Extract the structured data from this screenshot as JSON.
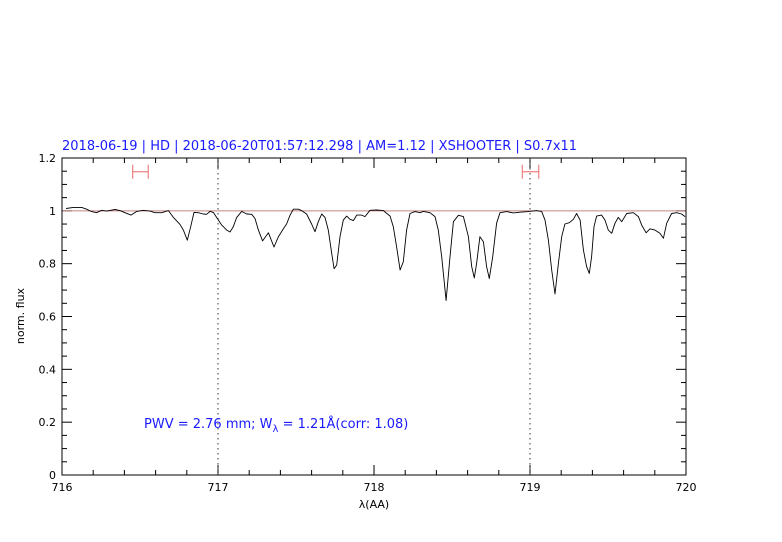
{
  "chart_data": {
    "type": "line",
    "title": "2018-06-19 | HD | 2018-06-20T01:57:12.298 | AM=1.12 | XSHOOTER | S0.7x11",
    "xlabel": "λ(AA)",
    "ylabel": "norm. flux",
    "xlim": [
      716,
      720
    ],
    "ylim": [
      0,
      1.2
    ],
    "x_ticks": [
      "716",
      "717",
      "718",
      "719",
      "720"
    ],
    "y_ticks": [
      "0",
      "0.2",
      "0.4",
      "0.6",
      "0.8",
      "1",
      "1.2"
    ],
    "x_minor_step": 0.2,
    "y_minor_step": 0.05,
    "grid": false,
    "annotation": {
      "prefix": "PWV = 2.76 mm; W",
      "subscript": "λ",
      "suffix": " = 1.21Å(corr: 1.08)"
    },
    "reference_line": {
      "y": 1,
      "color": "#c88080"
    },
    "vertical_dotted_lines": [
      717,
      719
    ],
    "interval_markers": [
      {
        "from": 716.453,
        "to": 716.553,
        "y": 1.148
      },
      {
        "from": 718.951,
        "to": 719.056,
        "y": 1.148
      }
    ],
    "colors": {
      "spectrum": "#000000",
      "title": "#1a1aff",
      "markers": "#f08080"
    },
    "series": [
      {
        "x": [
          716.026,
          716.073,
          716.126,
          716.158,
          716.19,
          716.222,
          716.254,
          716.286,
          716.34,
          716.372,
          716.404,
          716.442,
          716.479,
          716.521,
          716.564,
          716.596,
          716.639,
          716.682,
          716.714,
          716.756,
          716.778,
          716.803,
          716.825,
          716.846,
          716.874,
          716.906,
          716.927,
          716.949,
          716.97,
          716.991,
          717.024,
          717.056,
          717.077,
          717.098,
          717.12,
          717.152,
          717.184,
          717.216,
          717.237,
          717.259,
          717.286,
          717.323,
          717.359,
          717.387,
          717.419,
          717.44,
          717.462,
          717.483,
          717.515,
          717.536,
          717.568,
          717.6,
          717.622,
          717.643,
          717.665,
          717.686,
          717.707,
          717.729,
          717.744,
          717.761,
          717.782,
          717.803,
          717.825,
          717.846,
          717.868,
          717.889,
          717.921,
          717.942,
          717.974,
          718.017,
          718.06,
          718.103,
          718.124,
          718.145,
          718.167,
          718.188,
          718.209,
          718.231,
          718.263,
          718.295,
          718.316,
          718.359,
          718.391,
          718.412,
          718.434,
          718.462,
          718.487,
          718.509,
          718.541,
          718.573,
          718.605,
          718.626,
          718.643,
          718.658,
          718.679,
          718.701,
          718.722,
          718.739,
          718.761,
          718.786,
          718.808,
          718.85,
          718.893,
          718.936,
          718.989,
          719.043,
          719.075,
          719.096,
          719.118,
          719.139,
          719.16,
          719.182,
          719.203,
          719.224,
          719.252,
          719.278,
          719.299,
          719.321,
          719.342,
          719.363,
          719.38,
          719.395,
          719.41,
          719.427,
          719.459,
          719.481,
          719.502,
          719.524,
          719.545,
          719.566,
          719.588,
          719.62,
          719.663,
          719.695,
          719.716,
          719.744,
          719.769,
          719.801,
          719.833,
          719.855,
          719.876,
          719.908,
          719.94,
          719.972,
          719.994
        ],
        "y": [
          1.009,
          1.013,
          1.013,
          1.006,
          0.997,
          0.993,
          1.002,
          0.999,
          1.005,
          1.001,
          0.993,
          0.984,
          0.998,
          1.002,
          0.999,
          0.993,
          0.993,
          1.001,
          0.975,
          0.949,
          0.927,
          0.889,
          0.94,
          0.994,
          0.993,
          0.988,
          0.987,
          0.998,
          0.994,
          0.975,
          0.946,
          0.927,
          0.92,
          0.94,
          0.975,
          0.998,
          0.988,
          0.987,
          0.971,
          0.927,
          0.886,
          0.917,
          0.863,
          0.902,
          0.932,
          0.95,
          0.984,
          1.006,
          1.006,
          1.001,
          0.988,
          0.95,
          0.921,
          0.959,
          0.988,
          0.975,
          0.927,
          0.839,
          0.781,
          0.795,
          0.902,
          0.965,
          0.98,
          0.968,
          0.963,
          0.984,
          0.984,
          0.978,
          1.002,
          1.003,
          1.001,
          0.98,
          0.94,
          0.864,
          0.776,
          0.807,
          0.927,
          0.99,
          0.997,
          0.993,
          0.998,
          0.993,
          0.978,
          0.927,
          0.826,
          0.66,
          0.826,
          0.959,
          0.983,
          0.978,
          0.902,
          0.789,
          0.746,
          0.801,
          0.902,
          0.883,
          0.789,
          0.744,
          0.826,
          0.953,
          0.993,
          0.997,
          0.992,
          0.995,
          0.997,
          1.001,
          0.997,
          0.965,
          0.889,
          0.776,
          0.685,
          0.801,
          0.902,
          0.95,
          0.955,
          0.968,
          0.99,
          0.965,
          0.852,
          0.789,
          0.763,
          0.826,
          0.94,
          0.98,
          0.984,
          0.965,
          0.927,
          0.915,
          0.953,
          0.975,
          0.959,
          0.99,
          0.993,
          0.978,
          0.946,
          0.917,
          0.932,
          0.927,
          0.915,
          0.896,
          0.953,
          0.99,
          0.993,
          0.988,
          0.978
        ]
      }
    ]
  }
}
